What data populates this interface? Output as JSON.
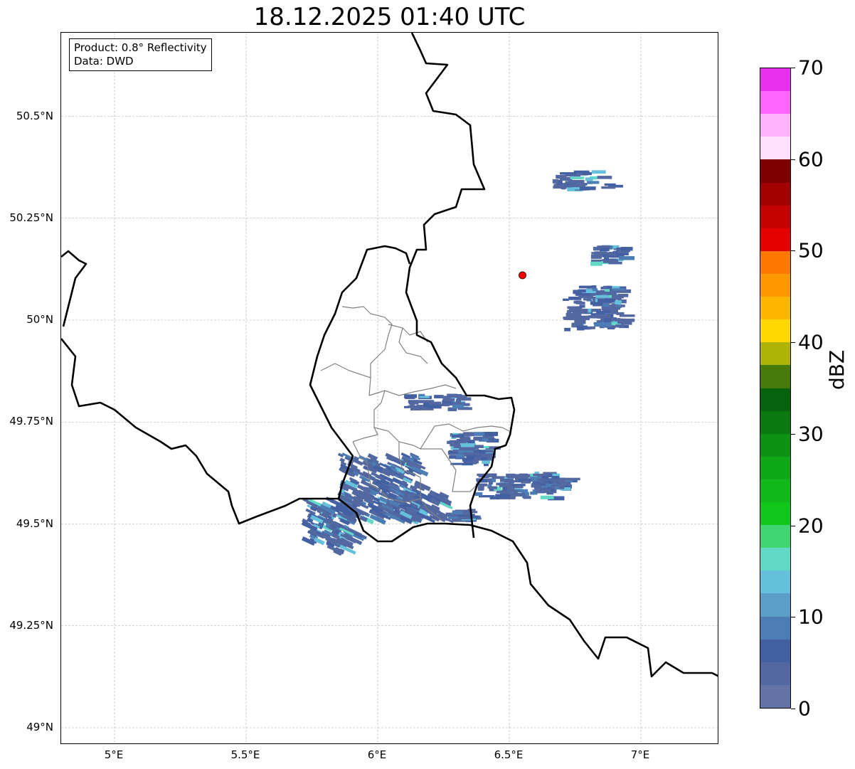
{
  "title": "18.12.2025 01:40 UTC",
  "annotation": {
    "line1": "Product: 0.8° Reflectivity",
    "line2": "Data: DWD"
  },
  "x_ticks": [
    {
      "value": 5,
      "label": "5°E"
    },
    {
      "value": 5.5,
      "label": "5.5°E"
    },
    {
      "value": 6,
      "label": "6°E"
    },
    {
      "value": 6.5,
      "label": "6.5°E"
    },
    {
      "value": 7,
      "label": "7°E"
    }
  ],
  "y_ticks": [
    {
      "value": 50.5,
      "label": "50.5°N"
    },
    {
      "value": 50.25,
      "label": "50.25°N"
    },
    {
      "value": 50,
      "label": "50°N"
    },
    {
      "value": 49.75,
      "label": "49.75°N"
    },
    {
      "value": 49.5,
      "label": "49.5°N"
    },
    {
      "value": 49.25,
      "label": "49.25°N"
    },
    {
      "value": 49,
      "label": "49°N"
    }
  ],
  "colorbar": {
    "label": "dBZ",
    "min": 0,
    "max": 70,
    "ticks": [
      {
        "value": 0,
        "label": "0"
      },
      {
        "value": 10,
        "label": "10"
      },
      {
        "value": 20,
        "label": "20"
      },
      {
        "value": 30,
        "label": "30"
      },
      {
        "value": 40,
        "label": "40"
      },
      {
        "value": 50,
        "label": "50"
      },
      {
        "value": 60,
        "label": "60"
      },
      {
        "value": 70,
        "label": "70"
      }
    ],
    "colors": [
      "#6473a6",
      "#5368a1",
      "#4360a3",
      "#4c7db4",
      "#5b9fc9",
      "#64c0db",
      "#62d8c6",
      "#3fd671",
      "#12c71b",
      "#10b81a",
      "#0fa816",
      "#0d9214",
      "#0a7a10",
      "#06620c",
      "#477a0b",
      "#afb305",
      "#fed800",
      "#fdb700",
      "#fe9800",
      "#fd7800",
      "#e50000",
      "#c40000",
      "#a30000",
      "#7e0000",
      "#ffe0fe",
      "#ffb2fe",
      "#ff66fe",
      "#e831ef"
    ]
  },
  "radar_site": {
    "lon": 6.55,
    "lat": 50.11,
    "color": "#ff0000"
  }
}
